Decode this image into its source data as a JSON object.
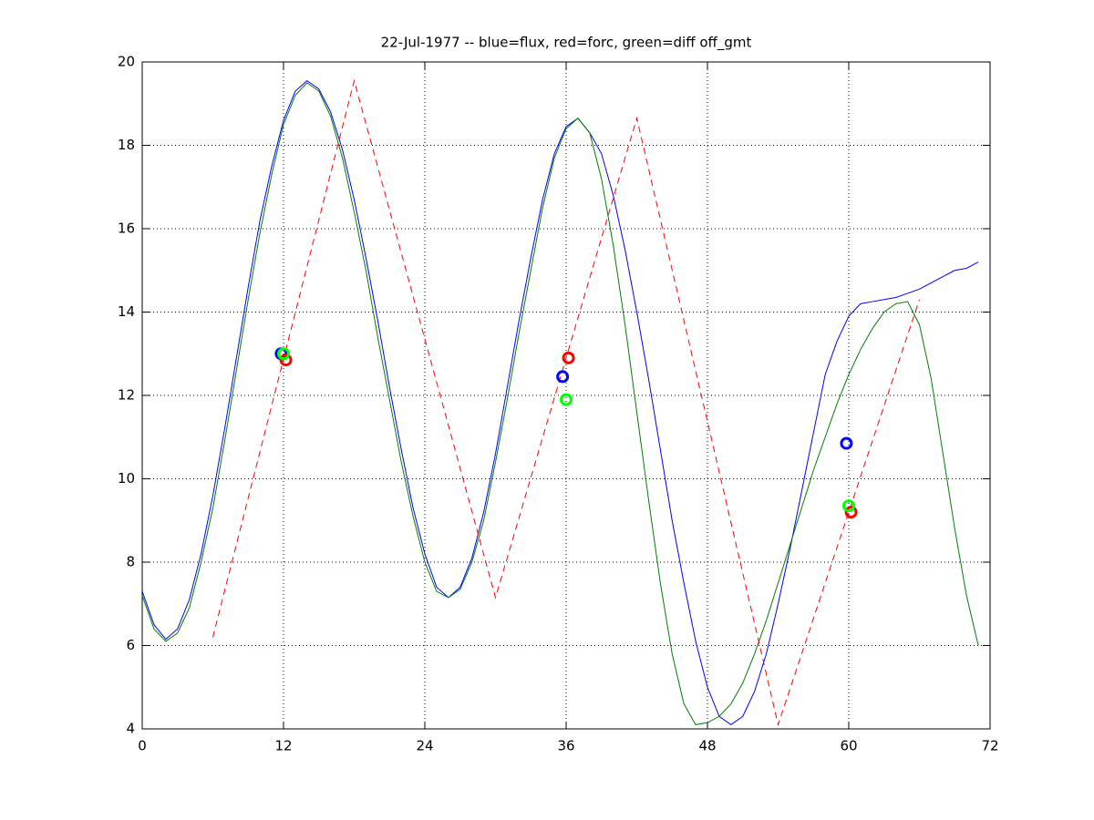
{
  "chart_data": {
    "type": "line",
    "title": "22-Jul-1977 -- blue=flux, red=forc, green=diff off_gmt",
    "xlim": [
      0,
      72
    ],
    "ylim": [
      4,
      20
    ],
    "xticks": [
      0,
      12,
      24,
      36,
      48,
      60,
      72
    ],
    "yticks": [
      4,
      6,
      8,
      10,
      12,
      14,
      16,
      18,
      20
    ],
    "grid": true,
    "series": [
      {
        "color": "#0000ff",
        "mode": "line",
        "dash": false,
        "x": [
          0,
          1,
          2,
          3,
          4,
          5,
          6,
          7,
          8,
          9,
          10,
          11,
          12,
          13,
          14,
          15,
          16,
          17,
          18,
          19,
          20,
          21,
          22,
          23,
          24,
          25,
          26,
          27,
          28,
          29,
          30,
          31,
          32,
          33,
          34,
          35,
          36,
          37,
          38,
          39,
          40,
          41,
          42,
          43,
          44,
          45,
          46,
          47,
          48,
          49,
          50,
          51,
          52,
          53,
          54,
          55,
          56,
          57,
          58,
          59,
          60,
          61,
          62,
          63,
          64,
          65,
          66,
          67,
          68,
          69,
          70,
          71
        ],
        "values": [
          7.3,
          6.5,
          6.15,
          6.4,
          7.1,
          8.2,
          9.6,
          11.2,
          12.9,
          14.6,
          16.2,
          17.5,
          18.6,
          19.3,
          19.55,
          19.35,
          18.8,
          17.9,
          16.7,
          15.3,
          13.8,
          12.2,
          10.7,
          9.3,
          8.2,
          7.4,
          7.15,
          7.4,
          8.1,
          9.2,
          10.6,
          12.2,
          13.8,
          15.3,
          16.7,
          17.8,
          18.45,
          18.65,
          18.3,
          17.8,
          16.8,
          15.5,
          14.0,
          12.4,
          10.7,
          9.0,
          7.5,
          6.1,
          5.0,
          4.3,
          4.1,
          4.3,
          4.9,
          5.8,
          7.0,
          8.3,
          9.7,
          11.1,
          12.5,
          13.3,
          13.9,
          14.2,
          14.25,
          14.3,
          14.35,
          14.45,
          14.55,
          14.7,
          14.85,
          15.0,
          15.05,
          15.2
        ]
      },
      {
        "color": "#008000",
        "mode": "line",
        "dash": false,
        "x": [
          0,
          1,
          2,
          3,
          4,
          5,
          6,
          7,
          8,
          9,
          10,
          11,
          12,
          13,
          14,
          15,
          16,
          17,
          18,
          19,
          20,
          21,
          22,
          23,
          24,
          25,
          26,
          27,
          28,
          29,
          30,
          31,
          32,
          33,
          34,
          35,
          36,
          37,
          38,
          39,
          40,
          41,
          42,
          43,
          44,
          45,
          46,
          47,
          48,
          49,
          50,
          51,
          52,
          53,
          54,
          55,
          56,
          57,
          58,
          59,
          60,
          61,
          62,
          63,
          64,
          65,
          66,
          67,
          68,
          69,
          70,
          71
        ],
        "values": [
          7.2,
          6.4,
          6.1,
          6.3,
          6.9,
          8.0,
          9.3,
          10.9,
          12.6,
          14.3,
          15.9,
          17.3,
          18.5,
          19.2,
          19.5,
          19.3,
          18.7,
          17.7,
          16.4,
          15.0,
          13.4,
          11.9,
          10.4,
          9.1,
          8.0,
          7.3,
          7.15,
          7.35,
          8.0,
          9.0,
          10.4,
          11.9,
          13.5,
          15.0,
          16.5,
          17.7,
          18.4,
          18.65,
          18.3,
          17.2,
          15.6,
          13.7,
          11.6,
          9.5,
          7.5,
          5.8,
          4.6,
          4.1,
          4.15,
          4.3,
          4.6,
          5.1,
          5.8,
          6.6,
          7.5,
          8.4,
          9.3,
          10.2,
          11.0,
          11.8,
          12.5,
          13.1,
          13.6,
          14.0,
          14.2,
          14.25,
          13.7,
          12.4,
          10.6,
          8.8,
          7.2,
          6.0
        ]
      },
      {
        "color": "#ff0000",
        "mode": "line",
        "dash": true,
        "x": [
          6,
          18,
          30,
          42,
          54,
          66
        ],
        "values": [
          6.2,
          19.55,
          7.15,
          18.65,
          4.1,
          14.3
        ]
      },
      {
        "color": "#0000ff",
        "mode": "markers",
        "x": [
          11.8,
          35.7,
          59.8
        ],
        "values": [
          13.0,
          12.45,
          10.85
        ]
      },
      {
        "color": "#ff0000",
        "mode": "markers",
        "x": [
          12.2,
          36.2,
          60.2
        ],
        "values": [
          12.85,
          12.9,
          9.2
        ]
      },
      {
        "color": "#00ff00",
        "mode": "markers",
        "x": [
          12.0,
          36.0,
          60.0
        ],
        "values": [
          13.0,
          11.9,
          9.35
        ]
      }
    ]
  }
}
